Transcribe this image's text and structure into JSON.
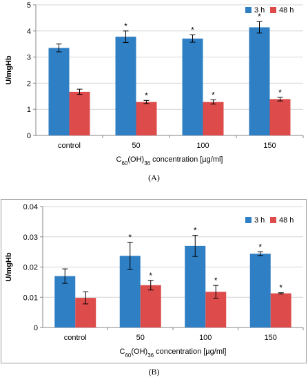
{
  "chart_data": [
    {
      "type": "bar",
      "caption": "(A)",
      "categories": [
        "control",
        "50",
        "100",
        "150"
      ],
      "xlabel": {
        "base": "C",
        "sub1": "60",
        "mid": "(OH)",
        "sub2": "36",
        "rest": " concentration  [µg/ml]"
      },
      "ylabel": "U/mgHb",
      "ylim": [
        0,
        5
      ],
      "yticks": [
        "0",
        "1",
        "2",
        "3",
        "4",
        "5"
      ],
      "ytick_values": [
        0,
        1,
        2,
        3,
        4,
        5
      ],
      "legend_position": "top-right",
      "series": [
        {
          "name": "3 h",
          "color": "#2f7fc4",
          "values": [
            3.35,
            3.78,
            3.71,
            4.14
          ],
          "errors": [
            0.15,
            0.22,
            0.14,
            0.22
          ],
          "significant": [
            false,
            true,
            true,
            true
          ]
        },
        {
          "name": "48 h",
          "color": "#de4b4b",
          "values": [
            1.67,
            1.28,
            1.28,
            1.39
          ],
          "errors": [
            0.1,
            0.06,
            0.08,
            0.07
          ],
          "significant": [
            false,
            true,
            true,
            true
          ]
        }
      ]
    },
    {
      "type": "bar",
      "caption": "(B)",
      "categories": [
        "control",
        "50",
        "100",
        "150"
      ],
      "xlabel": {
        "base": "C",
        "sub1": "60",
        "mid": "(OH)",
        "sub2": "36",
        "rest": " concentration  [µg/ml]"
      },
      "ylabel": "U/mgHb",
      "ylim": [
        0,
        0.04
      ],
      "yticks": [
        "0",
        "0.01",
        "0.02",
        "0.03",
        "0.04"
      ],
      "ytick_values": [
        0,
        0.01,
        0.02,
        0.03,
        0.04
      ],
      "legend_position": "top-right",
      "series": [
        {
          "name": "3 h",
          "color": "#2f7fc4",
          "values": [
            0.017,
            0.0237,
            0.027,
            0.0244
          ],
          "errors": [
            0.0024,
            0.0045,
            0.0035,
            0.0006
          ],
          "significant": [
            false,
            true,
            true,
            true
          ]
        },
        {
          "name": "48 h",
          "color": "#de4b4b",
          "values": [
            0.0098,
            0.014,
            0.0118,
            0.0113
          ],
          "errors": [
            0.002,
            0.0016,
            0.0021,
            0.0002
          ],
          "significant": [
            false,
            true,
            true,
            true
          ]
        }
      ]
    }
  ],
  "significance_marker": "*"
}
